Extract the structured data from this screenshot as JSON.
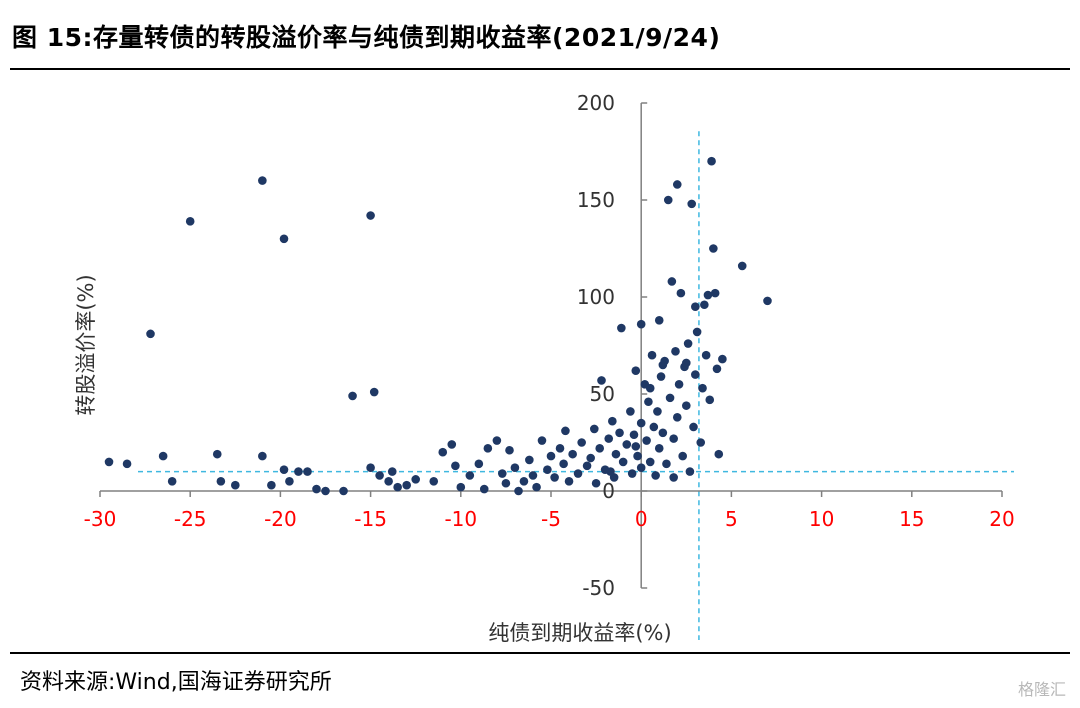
{
  "title": "图 15:存量转债的转股溢价率与纯债到期收益率(2021/9/24)",
  "source": "资料来源:Wind,国海证券研究所",
  "watermark": "格隆汇",
  "colors": {
    "points": "#1f3864",
    "x_tick_labels": "#ff0000",
    "reference_lines": "#3fb8e0"
  },
  "chart_data": {
    "type": "scatter",
    "xlabel": "纯债到期收益率(%)",
    "ylabel": "转股溢价率(%)",
    "xlim": [
      -30,
      20
    ],
    "ylim": [
      -50,
      200
    ],
    "x_ticks": [
      "-30",
      "-25",
      "-20",
      "-15",
      "-10",
      "-5",
      "0",
      "5",
      "10",
      "15",
      "20"
    ],
    "y_ticks": [
      "-50",
      "0",
      "50",
      "100",
      "150",
      "200"
    ],
    "reference_lines": {
      "x": 3.2,
      "y": 10
    },
    "points": [
      [
        -29.5,
        15
      ],
      [
        -28.5,
        14
      ],
      [
        -27.2,
        81
      ],
      [
        -26.5,
        18
      ],
      [
        -26,
        5
      ],
      [
        -25,
        139
      ],
      [
        -23.5,
        19
      ],
      [
        -23.3,
        5
      ],
      [
        -22.5,
        3
      ],
      [
        -21,
        160
      ],
      [
        -21,
        18
      ],
      [
        -20.5,
        3
      ],
      [
        -19.8,
        130
      ],
      [
        -19.8,
        11
      ],
      [
        -19.5,
        5
      ],
      [
        -19,
        10
      ],
      [
        -18.5,
        10
      ],
      [
        -18,
        1
      ],
      [
        -17.5,
        0
      ],
      [
        -16.5,
        0
      ],
      [
        -16,
        49
      ],
      [
        -15,
        142
      ],
      [
        -15,
        12
      ],
      [
        -14.8,
        51
      ],
      [
        -14.5,
        8
      ],
      [
        -14,
        5
      ],
      [
        -13.8,
        10
      ],
      [
        -13.5,
        2
      ],
      [
        -13,
        3
      ],
      [
        -12.5,
        6
      ],
      [
        -11.5,
        5
      ],
      [
        -11,
        20
      ],
      [
        -10.5,
        24
      ],
      [
        -10.3,
        13
      ],
      [
        -10,
        2
      ],
      [
        -9.5,
        8
      ],
      [
        -9,
        14
      ],
      [
        -8.7,
        1
      ],
      [
        -8.5,
        22
      ],
      [
        -8,
        26
      ],
      [
        -7.7,
        9
      ],
      [
        -7.5,
        4
      ],
      [
        -7.3,
        21
      ],
      [
        -7,
        12
      ],
      [
        -6.8,
        0
      ],
      [
        -6.5,
        5
      ],
      [
        -6.2,
        16
      ],
      [
        -6,
        8
      ],
      [
        -5.8,
        2
      ],
      [
        -5.5,
        26
      ],
      [
        -5.2,
        11
      ],
      [
        -5,
        18
      ],
      [
        -4.8,
        7
      ],
      [
        -4.5,
        22
      ],
      [
        -4.3,
        14
      ],
      [
        -4.2,
        31
      ],
      [
        -4,
        5
      ],
      [
        -3.8,
        19
      ],
      [
        -3.5,
        9
      ],
      [
        -3.3,
        25
      ],
      [
        -3,
        13
      ],
      [
        -2.8,
        17
      ],
      [
        -2.6,
        32
      ],
      [
        -2.5,
        4
      ],
      [
        -2.3,
        22
      ],
      [
        -2.2,
        57
      ],
      [
        -2,
        11
      ],
      [
        -1.8,
        27
      ],
      [
        -1.6,
        36
      ],
      [
        -1.5,
        7
      ],
      [
        -1.4,
        19
      ],
      [
        -1.2,
        30
      ],
      [
        -1.1,
        84
      ],
      [
        -1,
        15
      ],
      [
        -0.8,
        24
      ],
      [
        -0.6,
        41
      ],
      [
        -0.5,
        9
      ],
      [
        -0.4,
        29
      ],
      [
        -0.3,
        62
      ],
      [
        -0.2,
        18
      ],
      [
        0,
        86
      ],
      [
        0,
        35
      ],
      [
        0,
        12
      ],
      [
        0.2,
        55
      ],
      [
        0.3,
        26
      ],
      [
        0.4,
        46
      ],
      [
        0.5,
        15
      ],
      [
        0.6,
        70
      ],
      [
        0.7,
        33
      ],
      [
        0.8,
        8
      ],
      [
        0.9,
        41
      ],
      [
        1,
        88
      ],
      [
        1,
        22
      ],
      [
        1.1,
        59
      ],
      [
        1.2,
        30
      ],
      [
        1.3,
        67
      ],
      [
        1.4,
        14
      ],
      [
        1.5,
        150
      ],
      [
        1.6,
        48
      ],
      [
        1.7,
        108
      ],
      [
        1.8,
        27
      ],
      [
        1.9,
        72
      ],
      [
        2,
        158
      ],
      [
        2,
        38
      ],
      [
        2.1,
        55
      ],
      [
        2.2,
        102
      ],
      [
        2.3,
        18
      ],
      [
        2.4,
        64
      ],
      [
        2.5,
        44
      ],
      [
        2.6,
        76
      ],
      [
        2.7,
        10
      ],
      [
        2.8,
        148
      ],
      [
        2.9,
        33
      ],
      [
        3,
        60
      ],
      [
        3.1,
        82
      ],
      [
        3.3,
        25
      ],
      [
        3.4,
        53
      ],
      [
        3.5,
        96
      ],
      [
        3.6,
        70
      ],
      [
        3.7,
        101
      ],
      [
        3.8,
        47
      ],
      [
        3.9,
        170
      ],
      [
        4,
        125
      ],
      [
        4.1,
        102
      ],
      [
        4.2,
        63
      ],
      [
        4.3,
        19
      ],
      [
        4.5,
        68
      ],
      [
        5.6,
        116
      ],
      [
        7,
        98
      ],
      [
        1.2,
        65
      ],
      [
        -0.3,
        23
      ],
      [
        0.5,
        53
      ],
      [
        2.5,
        66
      ],
      [
        -1.7,
        10
      ],
      [
        3,
        95
      ],
      [
        1.8,
        7
      ]
    ]
  }
}
